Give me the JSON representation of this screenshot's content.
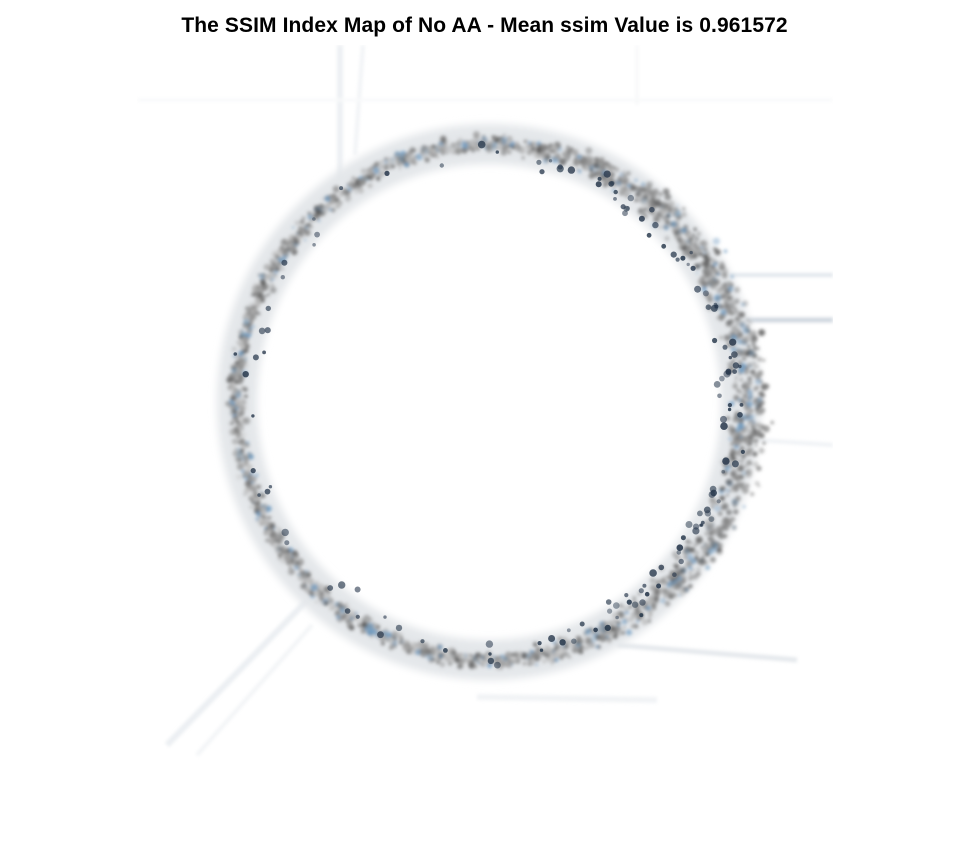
{
  "figure": {
    "title": "The SSIM Index Map of No AA - Mean ssim Value is 0.961572"
  },
  "image": {
    "subject": "ssim-index-map",
    "background_color": "#ffffff",
    "ring_color": "#7a7a7a",
    "dark_speck_color": "#2a3a4e",
    "light_speck_color": "#6e9ac0"
  }
}
